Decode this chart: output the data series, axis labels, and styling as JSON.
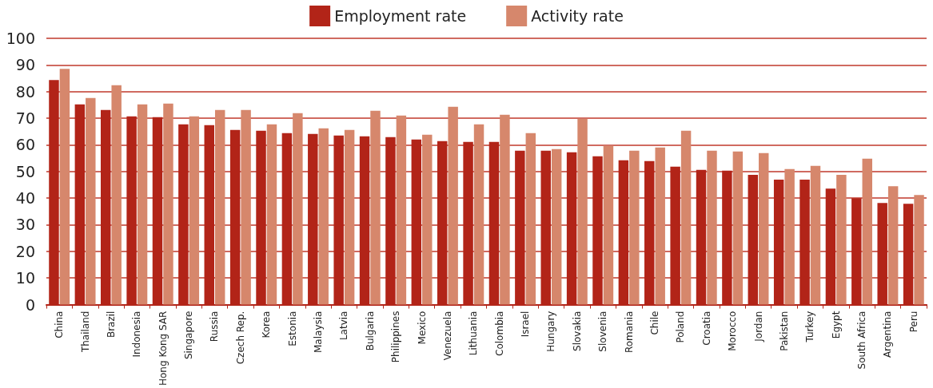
{
  "chart_data": {
    "type": "bar",
    "categories": [
      "China",
      "Thailand",
      "Brazil",
      "Indonesia",
      "Hong Kong SAR",
      "Singapore",
      "Russia",
      "Czech Rep.",
      "Korea",
      "Estonia",
      "Malaysia",
      "Latvia",
      "Bulgaria",
      "Philippines",
      "Mexico",
      "Venezuela",
      "Lithuania",
      "Colombia",
      "Israel",
      "Hungary",
      "Slovakia",
      "Slovenia",
      "Romania",
      "Chile",
      "Poland",
      "Croatia",
      "Morocco",
      "Jordan",
      "Pakistan",
      "Turkey",
      "Egypt",
      "South Africa",
      "Argentina",
      "Peru"
    ],
    "series": [
      {
        "name": "Employment rate",
        "color": "#b22418",
        "values": [
          84.3,
          75.2,
          73.1,
          70.7,
          70.4,
          67.7,
          67.4,
          65.6,
          65.3,
          64.4,
          64.1,
          63.5,
          63.2,
          62.9,
          62.0,
          61.4,
          61.1,
          61.1,
          57.8,
          57.8,
          57.2,
          55.7,
          54.2,
          53.9,
          51.8,
          50.6,
          50.3,
          48.7,
          46.9,
          46.9,
          43.6,
          40.0,
          38.2,
          37.9
        ]
      },
      {
        "name": "Activity rate",
        "color": "#d6876c",
        "values": [
          88.5,
          77.6,
          82.4,
          75.2,
          75.5,
          70.7,
          73.1,
          73.1,
          67.7,
          71.9,
          66.2,
          65.6,
          72.8,
          71.0,
          63.8,
          74.3,
          67.7,
          71.3,
          64.4,
          58.4,
          69.8,
          59.7,
          57.8,
          59.0,
          65.3,
          57.8,
          57.5,
          56.9,
          50.9,
          52.1,
          48.7,
          54.8,
          44.5,
          41.2
        ]
      }
    ],
    "ylim": [
      0,
      100
    ],
    "yticks": [
      0,
      10,
      20,
      30,
      40,
      50,
      60,
      70,
      80,
      90,
      100
    ],
    "grid": "y",
    "legend": "top"
  }
}
